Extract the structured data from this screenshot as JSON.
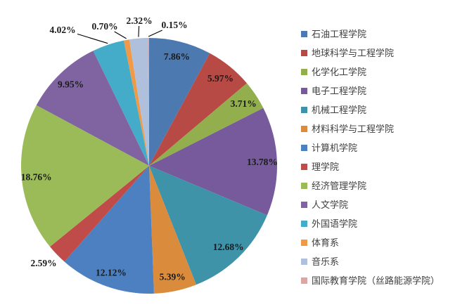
{
  "chart_data": {
    "type": "pie",
    "title": "",
    "start_angle_deg": 0,
    "direction": "clockwise",
    "legend_position": "right",
    "value_suffix": "%",
    "slices": [
      {
        "label": "石油工程学院",
        "value": 7.86,
        "display": "7.86%",
        "color": "#4C79B0",
        "label_placement": "inside",
        "leader": false
      },
      {
        "label": "地球科学与工程学院",
        "value": 5.97,
        "display": "5.97%",
        "color": "#B84A45",
        "label_placement": "inside",
        "leader": false
      },
      {
        "label": "化学化工学院",
        "value": 3.71,
        "display": "3.71%",
        "color": "#93AE4D",
        "label_placement": "inside",
        "leader": false
      },
      {
        "label": "电子工程学院",
        "value": 13.78,
        "display": "13.78%",
        "color": "#775A9C",
        "label_placement": "inside",
        "leader": false
      },
      {
        "label": "机械工程学院",
        "value": 12.68,
        "display": "12.68%",
        "color": "#3E93A9",
        "label_placement": "inside",
        "leader": false
      },
      {
        "label": "材料科学与工程学院",
        "value": 5.39,
        "display": "5.39%",
        "color": "#DA8C3C",
        "label_placement": "inside",
        "leader": false
      },
      {
        "label": "计算机学院",
        "value": 12.12,
        "display": "12.12%",
        "color": "#4C80C0",
        "label_placement": "inside",
        "leader": false
      },
      {
        "label": "理学院",
        "value": 2.59,
        "display": "2.59%",
        "color": "#BF4C48",
        "label_placement": "outside",
        "leader": false
      },
      {
        "label": "经济管理学院",
        "value": 18.76,
        "display": "18.76%",
        "color": "#9ABB57",
        "label_placement": "inside",
        "leader": false
      },
      {
        "label": "人文学院",
        "value": 9.95,
        "display": "9.95%",
        "color": "#8064A2",
        "label_placement": "inside",
        "leader": false
      },
      {
        "label": "外国语学院",
        "value": 4.02,
        "display": "4.02%",
        "color": "#44ACC8",
        "label_placement": "outside",
        "leader": true
      },
      {
        "label": "体育系",
        "value": 0.7,
        "display": "0.70%",
        "color": "#F09A48",
        "label_placement": "outside",
        "leader": true
      },
      {
        "label": "音乐系",
        "value": 2.32,
        "display": "2.32%",
        "color": "#AFC0DD",
        "label_placement": "outside",
        "leader": true
      },
      {
        "label": "国际教育学院（丝路能源学院）",
        "value": 0.15,
        "display": "0.15%",
        "color": "#DFA5A3",
        "label_placement": "outside",
        "leader": true
      }
    ]
  }
}
